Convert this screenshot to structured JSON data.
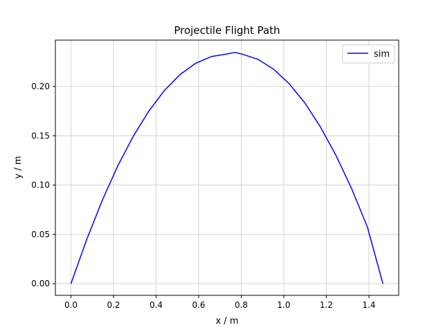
{
  "chart_data": {
    "type": "line",
    "title": "Projectile Flight Path",
    "xlabel": "x / m",
    "ylabel": "y / m",
    "xlim": [
      -0.0733,
      1.54
    ],
    "ylim": [
      -0.0118,
      0.247
    ],
    "xticks": [
      {
        "value": 0.0,
        "label": "0.0"
      },
      {
        "value": 0.2,
        "label": "0.2"
      },
      {
        "value": 0.4,
        "label": "0.4"
      },
      {
        "value": 0.6,
        "label": "0.6"
      },
      {
        "value": 0.8,
        "label": "0.8"
      },
      {
        "value": 1.0,
        "label": "1.0"
      },
      {
        "value": 1.2,
        "label": "1.2"
      },
      {
        "value": 1.4,
        "label": "1.4"
      }
    ],
    "yticks": [
      {
        "value": 0.0,
        "label": "0.00"
      },
      {
        "value": 0.05,
        "label": "0.05"
      },
      {
        "value": 0.1,
        "label": "0.10"
      },
      {
        "value": 0.15,
        "label": "0.15"
      },
      {
        "value": 0.2,
        "label": "0.20"
      }
    ],
    "grid": true,
    "legend": "top-right",
    "series": [
      {
        "name": "sim",
        "color": "#0000ff",
        "x": [
          0.0,
          0.0733,
          0.1466,
          0.2199,
          0.2932,
          0.3665,
          0.4398,
          0.5131,
          0.5864,
          0.6597,
          0.733,
          0.77,
          0.8063,
          0.8796,
          0.9529,
          1.0262,
          1.0995,
          1.1728,
          1.2461,
          1.3194,
          1.3927,
          1.466
        ],
        "y": [
          0.0,
          0.0445,
          0.0843,
          0.1194,
          0.1497,
          0.1752,
          0.1961,
          0.2122,
          0.2236,
          0.2303,
          0.233,
          0.2345,
          0.2327,
          0.2274,
          0.2174,
          0.2026,
          0.1831,
          0.1588,
          0.1298,
          0.0961,
          0.0576,
          0.0
        ]
      }
    ]
  }
}
